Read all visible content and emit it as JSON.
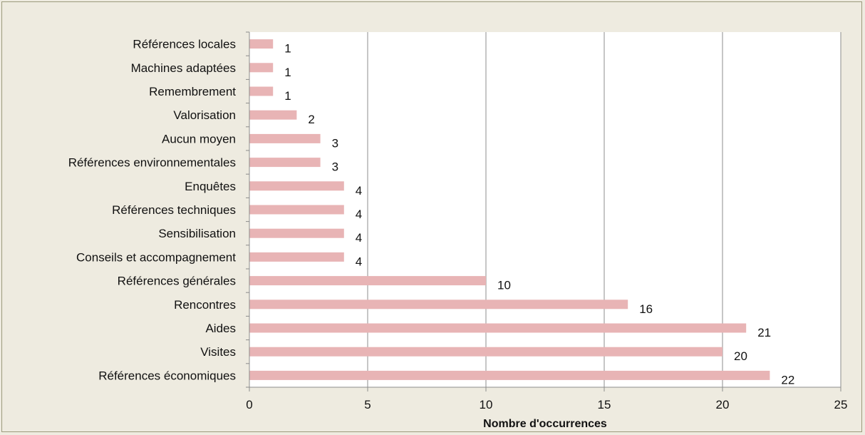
{
  "chart_data": {
    "type": "bar",
    "orientation": "horizontal",
    "title": "",
    "xlabel": "Nombre d'occurrences",
    "ylabel": "",
    "xlim": [
      0,
      25
    ],
    "xticks": [
      0,
      5,
      10,
      15,
      20,
      25
    ],
    "grid": "vertical",
    "bar_color": "#e8b4b5",
    "plot_background": "#ffffff",
    "page_background": "#eeebe0",
    "categories": [
      "Références locales",
      "Machines adaptées",
      "Remembrement",
      "Valorisation",
      "Aucun moyen",
      "Références environnementales",
      "Enquêtes",
      "Références techniques",
      "Sensibilisation",
      "Conseils et accompagnement",
      "Références générales",
      "Rencontres",
      "Aides",
      "Visites",
      "Références économiques"
    ],
    "values": [
      1,
      1,
      1,
      2,
      3,
      3,
      4,
      4,
      4,
      4,
      10,
      16,
      21,
      20,
      22
    ]
  }
}
